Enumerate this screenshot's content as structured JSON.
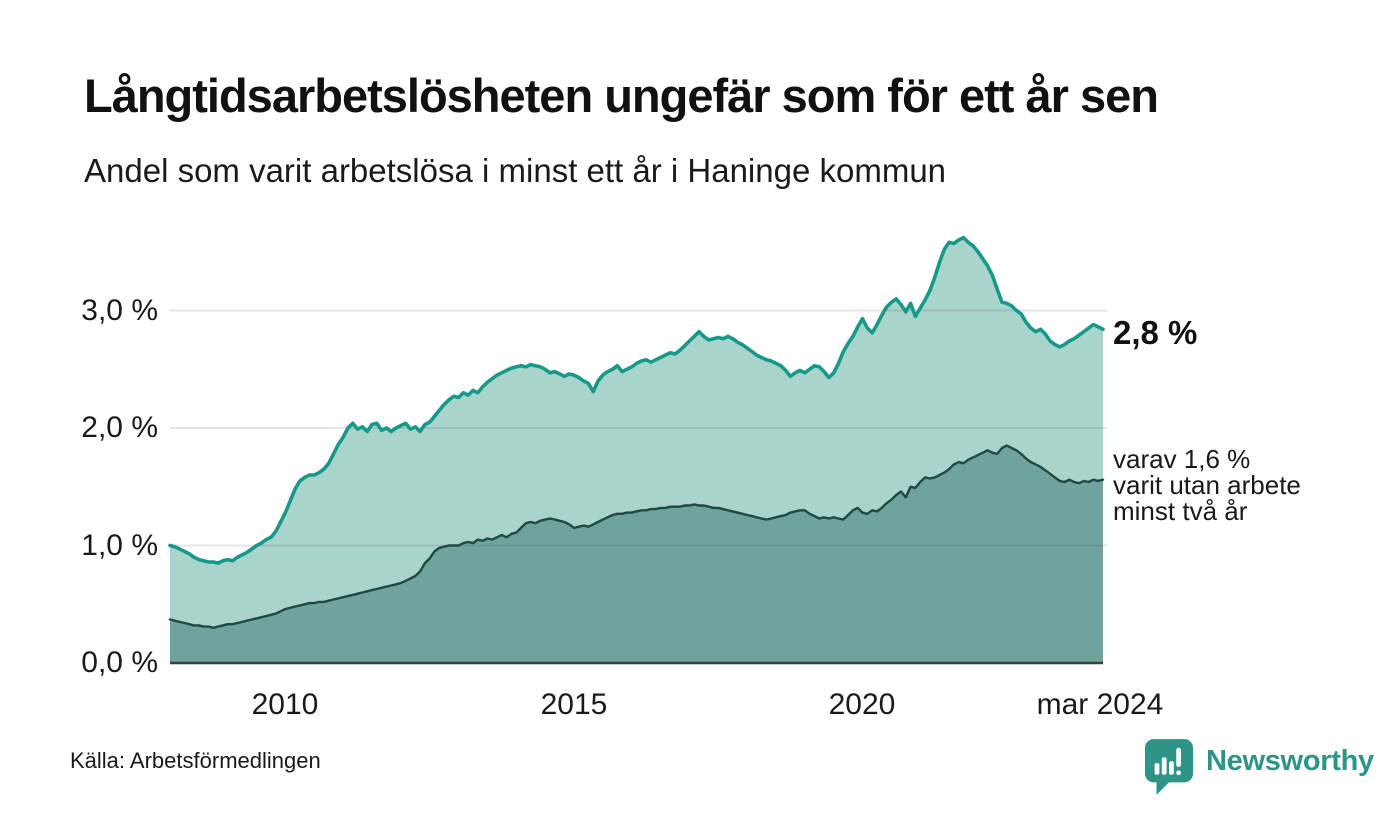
{
  "header": {
    "title": "Långtidsarbetslösheten ungefär som för ett år sen",
    "subtitle": "Andel som varit arbetslösa i minst ett år i Haninge kommun"
  },
  "annotations": {
    "latest_total": "2,8 %",
    "secondary": "varav 1,6 %\nvarit utan arbete\nminst två år"
  },
  "footer": {
    "source": "Källa: Arbetsförmedlingen",
    "brand": "Newsworthy"
  },
  "colors": {
    "line_total": "#17998a",
    "fill_total": "#a9d4cc",
    "line_two_years": "#1f4a43",
    "fill_two_years": "#6fa39b",
    "axis_baseline": "#37423f",
    "gridline": "rgba(70,70,70,0.14)",
    "brand_teal": "#2e9487"
  },
  "chart_data": {
    "type": "area",
    "title": "Långtidsarbetslösheten ungefär som för ett år sen",
    "subtitle": "Andel som varit arbetslösa i minst ett år i Haninge kommun",
    "x_unit": "month",
    "x_start_year": 2008.0,
    "x_end_year": 2024.1667,
    "ylim": [
      0,
      3.8
    ],
    "grid": "horizontal",
    "y_ticks": [
      {
        "value": 3.0,
        "label": "3,0 %"
      },
      {
        "value": 2.0,
        "label": "2,0 %"
      },
      {
        "value": 1.0,
        "label": "1,0 %"
      },
      {
        "value": 0.0,
        "label": "0,0 %"
      }
    ],
    "x_ticks": [
      {
        "year": 2010,
        "label": "2010"
      },
      {
        "year": 2015,
        "label": "2015"
      },
      {
        "year": 2020,
        "label": "2020"
      },
      {
        "year": 2024.1667,
        "label": "mar 2024"
      }
    ],
    "latest": {
      "total_pct": 2.8,
      "two_years_pct": 1.6
    },
    "series": [
      {
        "name": "Andel arbetslösa minst ett år",
        "values": [
          1.0,
          0.99,
          0.97,
          0.95,
          0.93,
          0.9,
          0.88,
          0.87,
          0.86,
          0.86,
          0.85,
          0.87,
          0.88,
          0.87,
          0.9,
          0.92,
          0.94,
          0.97,
          1.0,
          1.02,
          1.05,
          1.07,
          1.12,
          1.2,
          1.28,
          1.38,
          1.48,
          1.55,
          1.58,
          1.6,
          1.6,
          1.62,
          1.65,
          1.7,
          1.78,
          1.86,
          1.92,
          2.0,
          2.04,
          1.99,
          2.01,
          1.97,
          2.03,
          2.04,
          1.98,
          2.0,
          1.97,
          2.0,
          2.02,
          2.04,
          1.99,
          2.01,
          1.97,
          2.03,
          2.05,
          2.1,
          2.15,
          2.2,
          2.24,
          2.27,
          2.26,
          2.3,
          2.28,
          2.32,
          2.3,
          2.35,
          2.39,
          2.42,
          2.45,
          2.47,
          2.49,
          2.51,
          2.52,
          2.53,
          2.52,
          2.54,
          2.53,
          2.52,
          2.5,
          2.47,
          2.48,
          2.46,
          2.44,
          2.46,
          2.45,
          2.43,
          2.4,
          2.38,
          2.31,
          2.4,
          2.45,
          2.48,
          2.5,
          2.53,
          2.48,
          2.5,
          2.52,
          2.55,
          2.57,
          2.58,
          2.56,
          2.58,
          2.6,
          2.62,
          2.64,
          2.63,
          2.66,
          2.7,
          2.74,
          2.78,
          2.82,
          2.78,
          2.75,
          2.76,
          2.77,
          2.76,
          2.78,
          2.76,
          2.73,
          2.71,
          2.68,
          2.65,
          2.62,
          2.6,
          2.58,
          2.57,
          2.55,
          2.53,
          2.49,
          2.44,
          2.47,
          2.49,
          2.47,
          2.5,
          2.53,
          2.52,
          2.48,
          2.43,
          2.47,
          2.55,
          2.65,
          2.72,
          2.78,
          2.86,
          2.93,
          2.85,
          2.81,
          2.88,
          2.96,
          3.03,
          3.07,
          3.1,
          3.05,
          2.99,
          3.06,
          2.95,
          3.02,
          3.09,
          3.17,
          3.28,
          3.41,
          3.52,
          3.58,
          3.57,
          3.6,
          3.62,
          3.58,
          3.55,
          3.5,
          3.44,
          3.38,
          3.3,
          3.18,
          3.07,
          3.06,
          3.04,
          3.0,
          2.97,
          2.9,
          2.85,
          2.82,
          2.84,
          2.8,
          2.74,
          2.71,
          2.69,
          2.71,
          2.74,
          2.76,
          2.79,
          2.82,
          2.85,
          2.88,
          2.86,
          2.84
        ]
      },
      {
        "name": "varav utan arbete minst två år",
        "values": [
          0.37,
          0.36,
          0.35,
          0.34,
          0.33,
          0.32,
          0.32,
          0.31,
          0.31,
          0.3,
          0.31,
          0.32,
          0.33,
          0.33,
          0.34,
          0.35,
          0.36,
          0.37,
          0.38,
          0.39,
          0.4,
          0.41,
          0.42,
          0.44,
          0.46,
          0.47,
          0.48,
          0.49,
          0.5,
          0.51,
          0.51,
          0.52,
          0.52,
          0.53,
          0.54,
          0.55,
          0.56,
          0.57,
          0.58,
          0.59,
          0.6,
          0.61,
          0.62,
          0.63,
          0.64,
          0.65,
          0.66,
          0.67,
          0.68,
          0.7,
          0.72,
          0.74,
          0.78,
          0.85,
          0.89,
          0.95,
          0.98,
          0.99,
          1.0,
          1.0,
          1.0,
          1.02,
          1.03,
          1.02,
          1.05,
          1.04,
          1.06,
          1.05,
          1.07,
          1.09,
          1.07,
          1.1,
          1.11,
          1.15,
          1.19,
          1.2,
          1.19,
          1.21,
          1.22,
          1.23,
          1.22,
          1.21,
          1.2,
          1.18,
          1.15,
          1.16,
          1.17,
          1.16,
          1.18,
          1.2,
          1.22,
          1.24,
          1.26,
          1.27,
          1.27,
          1.28,
          1.28,
          1.29,
          1.3,
          1.3,
          1.31,
          1.31,
          1.32,
          1.32,
          1.33,
          1.33,
          1.33,
          1.34,
          1.34,
          1.35,
          1.34,
          1.34,
          1.33,
          1.32,
          1.32,
          1.31,
          1.3,
          1.29,
          1.28,
          1.27,
          1.26,
          1.25,
          1.24,
          1.23,
          1.22,
          1.23,
          1.24,
          1.25,
          1.26,
          1.28,
          1.29,
          1.3,
          1.3,
          1.27,
          1.25,
          1.23,
          1.24,
          1.23,
          1.24,
          1.23,
          1.22,
          1.26,
          1.3,
          1.32,
          1.28,
          1.27,
          1.3,
          1.29,
          1.32,
          1.36,
          1.39,
          1.43,
          1.46,
          1.41,
          1.5,
          1.49,
          1.54,
          1.58,
          1.57,
          1.58,
          1.6,
          1.62,
          1.65,
          1.69,
          1.71,
          1.7,
          1.73,
          1.75,
          1.77,
          1.79,
          1.81,
          1.79,
          1.78,
          1.83,
          1.85,
          1.83,
          1.81,
          1.78,
          1.74,
          1.71,
          1.69,
          1.67,
          1.64,
          1.61,
          1.58,
          1.55,
          1.54,
          1.56,
          1.54,
          1.53,
          1.55,
          1.54,
          1.56,
          1.55,
          1.56
        ]
      }
    ]
  }
}
